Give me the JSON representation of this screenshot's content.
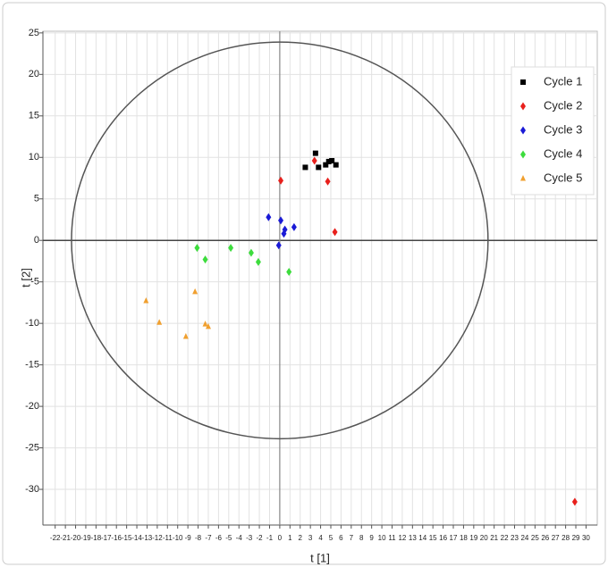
{
  "chart_data": {
    "type": "scatter",
    "x_label": "t [1]",
    "y_label": "t [2]",
    "xlim": [
      -23.2,
      31.1
    ],
    "ylim": [
      -34.3,
      25.2
    ],
    "xticks": [
      -22,
      -21,
      -20,
      -19,
      -18,
      -17,
      -16,
      -15,
      -14,
      -13,
      -12,
      -11,
      -10,
      -9,
      -8,
      -7,
      -6,
      -5,
      -4,
      -3,
      -2,
      -1,
      0,
      1,
      2,
      3,
      4,
      5,
      6,
      7,
      8,
      9,
      10,
      11,
      12,
      13,
      14,
      15,
      16,
      17,
      18,
      19,
      20,
      21,
      22,
      23,
      24,
      25,
      26,
      27,
      28,
      29,
      30
    ],
    "yticks": [
      25,
      20,
      15,
      10,
      5,
      0,
      -5,
      -10,
      -15,
      -20,
      -25,
      -30
    ],
    "grid": true,
    "zero_lines": true,
    "legend": "upper right",
    "ellipse_radii": [
      20.4,
      23.9
    ],
    "series": [
      {
        "name": "Cycle 1",
        "color": "#000000",
        "marker": "square",
        "x": [
          2.5,
          3.5,
          3.8,
          4.5,
          4.8,
          5.1,
          5.5
        ],
        "values": [
          8.8,
          10.5,
          8.8,
          9.1,
          9.5,
          9.6,
          9.1
        ]
      },
      {
        "name": "Cycle 2",
        "color": "#e8201c",
        "marker": "diamond",
        "x": [
          0.1,
          3.4,
          4.7,
          5.4,
          28.9
        ],
        "values": [
          7.2,
          9.6,
          7.1,
          1.0,
          -31.5
        ]
      },
      {
        "name": "Cycle 3",
        "color": "#1a1ad6",
        "marker": "diamond",
        "x": [
          -1.1,
          0.1,
          0.5,
          0.4,
          1.4,
          -0.1
        ],
        "values": [
          2.8,
          2.4,
          1.3,
          0.8,
          1.6,
          -0.6
        ]
      },
      {
        "name": "Cycle 4",
        "color": "#3ddc3d",
        "marker": "diamond",
        "x": [
          -8.1,
          -7.3,
          -4.8,
          -2.8,
          -2.1,
          0.9
        ],
        "values": [
          -0.9,
          -2.3,
          -0.9,
          -1.5,
          -2.6,
          -3.8
        ]
      },
      {
        "name": "Cycle 5",
        "color": "#f0a030",
        "marker": "triangle",
        "x": [
          -13.1,
          -11.8,
          -8.3,
          -9.2,
          -7.3,
          -7.0
        ],
        "values": [
          -7.3,
          -9.9,
          -6.2,
          -11.6,
          -10.1,
          -10.4
        ]
      }
    ]
  }
}
